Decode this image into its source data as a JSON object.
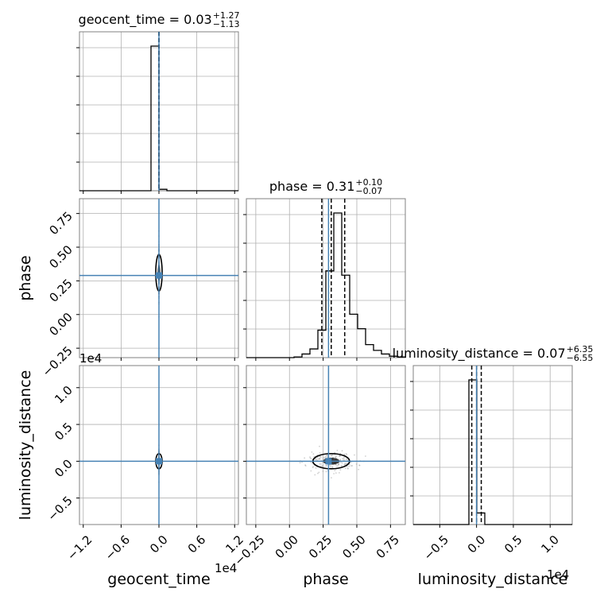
{
  "chart_data": {
    "type": "corner",
    "parameters": [
      {
        "name": "geocent_time",
        "truth": 0.0,
        "offset_text": "1e4",
        "title": {
          "prefix": "geocent_time = 0.03",
          "upper": "+1.27",
          "lower": "−1.13"
        },
        "quantiles": [
          -1.1,
          0.03,
          1.3
        ],
        "ticks": [
          "−1.2",
          "−0.6",
          "0.0",
          "0.6",
          "1.2"
        ],
        "tick_values": [
          -12000,
          -6000,
          0,
          6000,
          12000
        ],
        "range": [
          -12600,
          12600
        ]
      },
      {
        "name": "phase",
        "truth": 0.29,
        "title": {
          "prefix": "phase = 0.31",
          "upper": "+0.10",
          "lower": "−0.07"
        },
        "quantiles": [
          0.24,
          0.31,
          0.41
        ],
        "ticks": [
          "−0.25",
          "0.00",
          "0.25",
          "0.50",
          "0.75"
        ],
        "tick_values": [
          -0.25,
          0.0,
          0.25,
          0.5,
          0.75
        ],
        "range": [
          -0.32,
          0.86
        ]
      },
      {
        "name": "luminosity_distance",
        "truth": 0.0,
        "offset_text": "1e4",
        "title": {
          "prefix": "luminosity_distance = 0.07",
          "upper": "+6.35",
          "lower": "−6.55"
        },
        "quantiles": [
          -650,
          7,
          640
        ],
        "ticks": [
          "−0.5",
          "0.0",
          "0.5",
          "1.0"
        ],
        "y_ticks": [
          "−0.5",
          "0.0",
          "0.5",
          "1.0"
        ],
        "tick_values": [
          -5000,
          0,
          5000,
          10000
        ],
        "range": [
          -8600,
          13000
        ]
      }
    ],
    "histograms": {
      "geocent_time": {
        "bin_edges": [
          -12600,
          -11340,
          -10080,
          -8820,
          -7560,
          -6300,
          -5040,
          -3780,
          -2520,
          -1260,
          0,
          1260,
          2520,
          3780,
          5040,
          6300,
          7560,
          8820,
          10080,
          11340,
          12600
        ],
        "counts": [
          0,
          0,
          0,
          0,
          0,
          0,
          0,
          0,
          0,
          1.0,
          0.01,
          0,
          0,
          0,
          0,
          0,
          0,
          0,
          0,
          0
        ]
      },
      "phase": {
        "bin_edges": [
          -0.32,
          -0.261,
          -0.202,
          -0.143,
          -0.084,
          -0.025,
          0.034,
          0.093,
          0.152,
          0.211,
          0.27,
          0.329,
          0.388,
          0.447,
          0.506,
          0.565,
          0.624,
          0.683,
          0.742,
          0.801,
          0.86
        ],
        "counts": [
          0,
          0,
          0,
          0,
          0,
          0,
          0.005,
          0.025,
          0.06,
          0.19,
          0.6,
          1.0,
          0.57,
          0.3,
          0.2,
          0.09,
          0.05,
          0.025,
          0.01,
          0.005
        ]
      },
      "luminosity_distance": {
        "bin_edges": [
          -8600,
          -7520,
          -6440,
          -5360,
          -4280,
          -3200,
          -2120,
          -1040,
          40,
          1120,
          2200,
          3280,
          4360,
          5440,
          6520,
          7600,
          8680,
          9760,
          10840,
          11920,
          13000
        ],
        "counts": [
          0,
          0,
          0,
          0,
          0,
          0,
          0,
          1.0,
          0.08,
          0,
          0,
          0,
          0,
          0,
          0,
          0,
          0,
          0,
          0,
          0
        ]
      }
    },
    "grid": true,
    "truth_color": "#4682b4"
  }
}
